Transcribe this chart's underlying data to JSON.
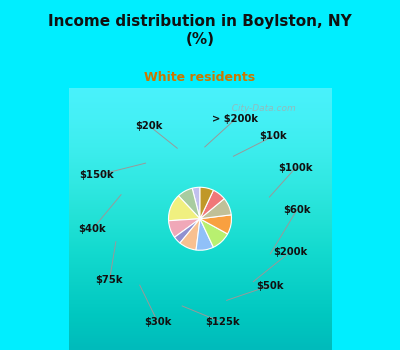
{
  "title": "Income distribution in Boylston, NY\n(%)",
  "subtitle": "White residents",
  "title_color": "#111111",
  "subtitle_color": "#cc7700",
  "background_cyan": "#00eeff",
  "background_chart": "#d4ede0",
  "labels": [
    "> $200k",
    "$10k",
    "$100k",
    "$60k",
    "$200k",
    "$50k",
    "$125k",
    "$30k",
    "$75k",
    "$40k",
    "$150k",
    "$20k"
  ],
  "values": [
    4,
    8,
    14,
    9,
    4,
    9,
    9,
    10,
    10,
    9,
    7,
    7
  ],
  "colors": [
    "#c0c0ee",
    "#a8cca0",
    "#f0f080",
    "#f0a8b8",
    "#9090d0",
    "#f8c090",
    "#90c0f8",
    "#b8f070",
    "#f8a040",
    "#c0c098",
    "#f07878",
    "#c09828"
  ],
  "wedge_edge_color": "#ffffff",
  "wedge_edge_width": 0.8,
  "label_fontsize": 7.2,
  "label_color": "#111111",
  "watermark": "  City-Data.com",
  "title_fontsize": 11,
  "subtitle_fontsize": 9
}
